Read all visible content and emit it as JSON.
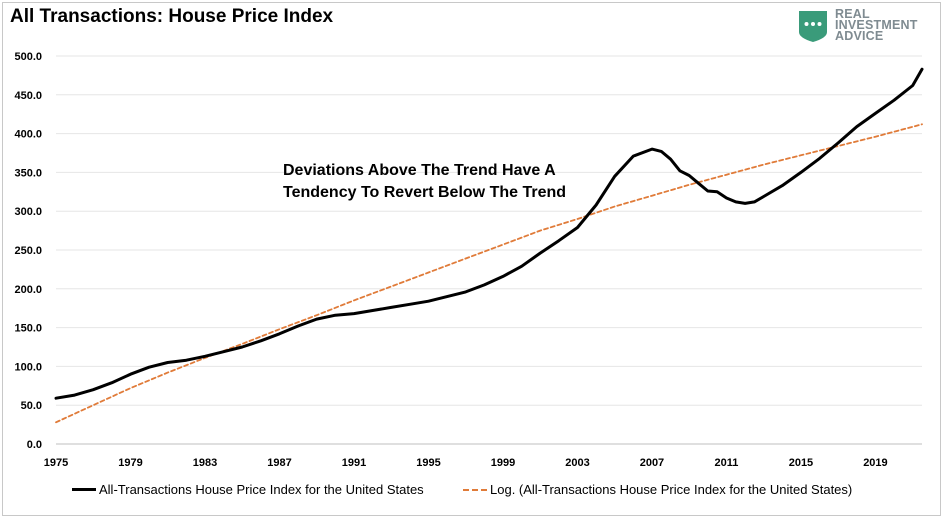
{
  "title": "All Transactions: House Price Index",
  "logo": {
    "line1": "REAL",
    "line2": "INVESTMENT",
    "line3": "ADVICE",
    "icon": "chat-bubble-shield-icon",
    "color": "#3a9b7a"
  },
  "annotation": {
    "line1": "Deviations Above The Trend Have A",
    "line2": "Tendency To Revert Below The Trend"
  },
  "legend": {
    "series1": "All-Transactions House Price Index for the United States",
    "series2": "Log. (All-Transactions House Price Index for the United States)"
  },
  "chart_data": {
    "type": "line",
    "title": "All Transactions: House Price Index",
    "xlim": [
      1975,
      2021.5
    ],
    "ylim": [
      0,
      500
    ],
    "x_ticks": [
      "1975",
      "1979",
      "1983",
      "1987",
      "1991",
      "1995",
      "1999",
      "2003",
      "2007",
      "2011",
      "2015",
      "2019"
    ],
    "y_ticks": [
      "0.0",
      "50.0",
      "100.0",
      "150.0",
      "200.0",
      "250.0",
      "300.0",
      "350.0",
      "400.0",
      "450.0",
      "500.0"
    ],
    "grid": "horizontal",
    "legend_position": "bottom",
    "series": [
      {
        "name": "All-Transactions House Price Index for the United States",
        "color": "#000000",
        "style": "solid",
        "points": [
          [
            1975,
            59
          ],
          [
            1976,
            63
          ],
          [
            1977,
            70
          ],
          [
            1978,
            79
          ],
          [
            1979,
            90
          ],
          [
            1980,
            99
          ],
          [
            1981,
            105
          ],
          [
            1982,
            108
          ],
          [
            1983,
            113
          ],
          [
            1984,
            119
          ],
          [
            1985,
            125
          ],
          [
            1986,
            133
          ],
          [
            1987,
            142
          ],
          [
            1988,
            152
          ],
          [
            1989,
            161
          ],
          [
            1990,
            166
          ],
          [
            1991,
            168
          ],
          [
            1992,
            172
          ],
          [
            1993,
            176
          ],
          [
            1994,
            180
          ],
          [
            1995,
            184
          ],
          [
            1996,
            190
          ],
          [
            1997,
            196
          ],
          [
            1998,
            205
          ],
          [
            1999,
            216
          ],
          [
            2000,
            229
          ],
          [
            2001,
            246
          ],
          [
            2002,
            262
          ],
          [
            2003,
            279
          ],
          [
            2004,
            308
          ],
          [
            2005,
            345
          ],
          [
            2006,
            371
          ],
          [
            2007,
            380
          ],
          [
            2007.5,
            377
          ],
          [
            2008,
            367
          ],
          [
            2008.5,
            352
          ],
          [
            2009,
            346
          ],
          [
            2009.5,
            336
          ],
          [
            2010,
            326
          ],
          [
            2010.5,
            325
          ],
          [
            2011,
            317
          ],
          [
            2011.5,
            312
          ],
          [
            2012,
            310
          ],
          [
            2012.5,
            312
          ],
          [
            2013,
            319
          ],
          [
            2014,
            333
          ],
          [
            2015,
            350
          ],
          [
            2016,
            368
          ],
          [
            2017,
            388
          ],
          [
            2018,
            409
          ],
          [
            2019,
            426
          ],
          [
            2020,
            443
          ],
          [
            2021,
            462
          ],
          [
            2021.5,
            483
          ]
        ]
      },
      {
        "name": "Log. (All-Transactions House Price Index for the United States)",
        "color": "#e07b39",
        "style": "dashed",
        "points": [
          [
            1975,
            28
          ],
          [
            1977,
            50
          ],
          [
            1979,
            72
          ],
          [
            1981,
            92
          ],
          [
            1983,
            111
          ],
          [
            1985,
            129
          ],
          [
            1987,
            148
          ],
          [
            1989,
            166
          ],
          [
            1991,
            185
          ],
          [
            1993,
            203
          ],
          [
            1995,
            221
          ],
          [
            1997,
            239
          ],
          [
            1999,
            257
          ],
          [
            2001,
            275
          ],
          [
            2003,
            290
          ],
          [
            2005,
            306
          ],
          [
            2007,
            320
          ],
          [
            2009,
            334
          ],
          [
            2011,
            347
          ],
          [
            2013,
            360
          ],
          [
            2015,
            372
          ],
          [
            2017,
            384
          ],
          [
            2019,
            396
          ],
          [
            2021.5,
            412
          ]
        ]
      }
    ]
  }
}
